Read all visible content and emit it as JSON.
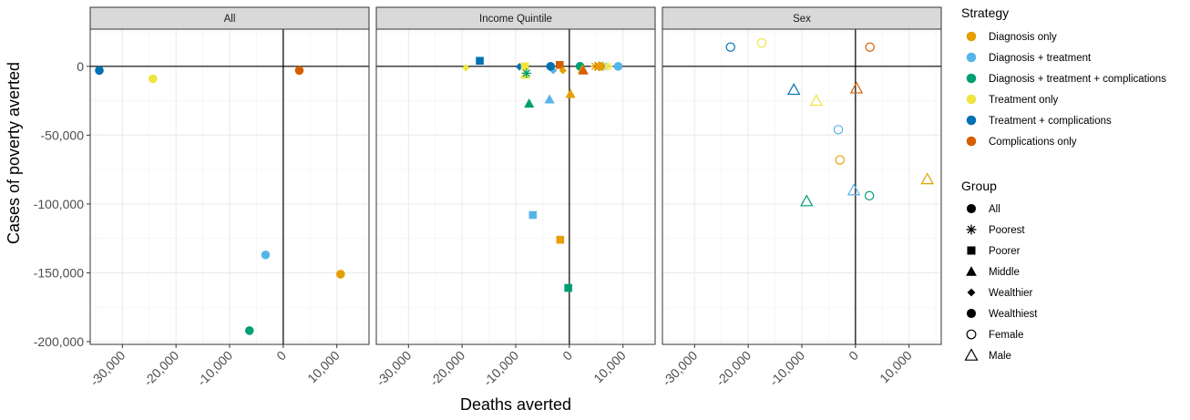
{
  "chart_data": {
    "type": "scatter",
    "xlabel": "Deaths averted",
    "ylabel": "Cases of poverty averted",
    "xlim": [
      -36000,
      16000
    ],
    "ylim": [
      -202000,
      27000
    ],
    "x_ticks": [
      -30000,
      -20000,
      -10000,
      0,
      10000
    ],
    "x_tick_labels": [
      "-30,000",
      "-20,000",
      "-10,000",
      "0",
      "10,000"
    ],
    "y_ticks": [
      0,
      -50000,
      -100000,
      -150000,
      -200000
    ],
    "y_tick_labels": [
      "0",
      "-50,000",
      "-100,000",
      "-150,000",
      "-200,000"
    ],
    "grid": true,
    "legend_placement": "right",
    "strategy_legend": {
      "title": "Strategy",
      "items": [
        {
          "key": "diag",
          "label": "Diagnosis only",
          "color": "#E69F00"
        },
        {
          "key": "diagtx",
          "label": "Diagnosis + treatment",
          "color": "#56B4E9"
        },
        {
          "key": "diagtxcomp",
          "label": "Diagnosis + treatment + complications",
          "color": "#009E73"
        },
        {
          "key": "tx",
          "label": "Treatment only",
          "color": "#F0E442"
        },
        {
          "key": "txcomp",
          "label": "Treatment + complications",
          "color": "#0072B2"
        },
        {
          "key": "comp",
          "label": "Complications only",
          "color": "#D55E00"
        }
      ]
    },
    "group_legend": {
      "title": "Group",
      "items": [
        {
          "key": "all",
          "label": "All",
          "shape": "filled-circle"
        },
        {
          "key": "poorest",
          "label": "Poorest",
          "shape": "asterisk"
        },
        {
          "key": "poorer",
          "label": "Poorer",
          "shape": "filled-square"
        },
        {
          "key": "middle",
          "label": "Middle",
          "shape": "filled-triangle"
        },
        {
          "key": "wealthier",
          "label": "Wealthier",
          "shape": "filled-diamond"
        },
        {
          "key": "wealthiest",
          "label": "Wealthiest",
          "shape": "filled-circle"
        },
        {
          "key": "female",
          "label": "Female",
          "shape": "open-circle"
        },
        {
          "key": "male",
          "label": "Male",
          "shape": "open-triangle"
        }
      ]
    },
    "panels": [
      {
        "title": "All",
        "points": [
          {
            "strategy": "txcomp",
            "group": "all",
            "x": -34300,
            "y": -3000
          },
          {
            "strategy": "tx",
            "group": "all",
            "x": -24300,
            "y": -9000
          },
          {
            "strategy": "comp",
            "group": "all",
            "x": 3000,
            "y": -3000
          },
          {
            "strategy": "diagtx",
            "group": "all",
            "x": -3300,
            "y": -137000
          },
          {
            "strategy": "diag",
            "group": "all",
            "x": 10700,
            "y": -151000
          },
          {
            "strategy": "diagtxcomp",
            "group": "all",
            "x": -6300,
            "y": -192000
          }
        ]
      },
      {
        "title": "Income Quintile",
        "points": [
          {
            "strategy": "txcomp",
            "group": "poorer",
            "x": -16700,
            "y": 4000
          },
          {
            "strategy": "tx",
            "group": "wealthier",
            "x": -19300,
            "y": -1000
          },
          {
            "strategy": "txcomp",
            "group": "wealthier",
            "x": -9300,
            "y": -300
          },
          {
            "strategy": "tx",
            "group": "middle",
            "x": -8200,
            "y": -6000
          },
          {
            "strategy": "tx",
            "group": "poorer",
            "x": -8300,
            "y": 0
          },
          {
            "strategy": "diagtxcomp",
            "group": "poorest",
            "x": -8000,
            "y": -5000
          },
          {
            "strategy": "diagtxcomp",
            "group": "middle",
            "x": -7500,
            "y": -27000
          },
          {
            "strategy": "diagtx",
            "group": "poorer",
            "x": -6800,
            "y": -108000
          },
          {
            "strategy": "diagtx",
            "group": "middle",
            "x": -3700,
            "y": -24000
          },
          {
            "strategy": "diagtx",
            "group": "wealthier",
            "x": -3000,
            "y": -3000
          },
          {
            "strategy": "txcomp",
            "group": "wealthiest",
            "x": -3500,
            "y": 0
          },
          {
            "strategy": "diag",
            "group": "poorer",
            "x": -1700,
            "y": -126000
          },
          {
            "strategy": "comp",
            "group": "poorer",
            "x": -1800,
            "y": 1000
          },
          {
            "strategy": "diag",
            "group": "wealthier",
            "x": -1200,
            "y": -3000
          },
          {
            "strategy": "diag",
            "group": "middle",
            "x": 200,
            "y": -20000
          },
          {
            "strategy": "diagtxcomp",
            "group": "poorer",
            "x": -200,
            "y": -161000
          },
          {
            "strategy": "diagtxcomp",
            "group": "wealthiest",
            "x": 2000,
            "y": 0
          },
          {
            "strategy": "diag",
            "group": "middle",
            "x": 2500,
            "y": -2000
          },
          {
            "strategy": "comp",
            "group": "middle",
            "x": 2600,
            "y": -3000
          },
          {
            "strategy": "diag",
            "group": "poorest",
            "x": 4800,
            "y": 0
          },
          {
            "strategy": "comp",
            "group": "poorest",
            "x": 5500,
            "y": 0
          },
          {
            "strategy": "diagtx",
            "group": "poorest",
            "x": 6300,
            "y": 0
          },
          {
            "strategy": "tx",
            "group": "poorest",
            "x": 7200,
            "y": 0
          },
          {
            "strategy": "diag",
            "group": "wealthiest",
            "x": 5800,
            "y": 0
          },
          {
            "strategy": "diagtx",
            "group": "wealthiest",
            "x": 9100,
            "y": 0
          }
        ]
      },
      {
        "title": "Sex",
        "points": [
          {
            "strategy": "txcomp",
            "group": "female",
            "x": -23300,
            "y": 14000
          },
          {
            "strategy": "tx",
            "group": "female",
            "x": -17500,
            "y": 17000
          },
          {
            "strategy": "comp",
            "group": "female",
            "x": 2700,
            "y": 14000
          },
          {
            "strategy": "txcomp",
            "group": "male",
            "x": -11500,
            "y": -17000
          },
          {
            "strategy": "tx",
            "group": "male",
            "x": -7300,
            "y": -25000
          },
          {
            "strategy": "comp",
            "group": "male",
            "x": 200,
            "y": -16000
          },
          {
            "strategy": "diagtx",
            "group": "female",
            "x": -3200,
            "y": -46000
          },
          {
            "strategy": "diag",
            "group": "female",
            "x": -2900,
            "y": -68000
          },
          {
            "strategy": "diagtxcomp",
            "group": "male",
            "x": -9100,
            "y": -98000
          },
          {
            "strategy": "diagtx",
            "group": "male",
            "x": -300,
            "y": -90000
          },
          {
            "strategy": "diagtxcomp",
            "group": "female",
            "x": 2600,
            "y": -94000
          },
          {
            "strategy": "diag",
            "group": "male",
            "x": 13400,
            "y": -82000
          }
        ]
      }
    ]
  }
}
